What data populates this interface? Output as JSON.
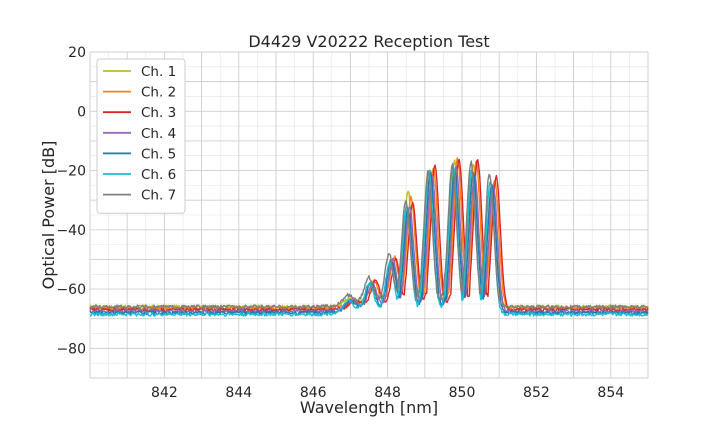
{
  "chart_data": {
    "type": "line",
    "title": "D4429 V20222 Reception Test",
    "xlabel": "Wavelength [nm]",
    "ylabel": "Optical Power [dB]",
    "xlim": [
      840,
      855
    ],
    "ylim": [
      -90,
      20
    ],
    "xticks": [
      842,
      844,
      846,
      848,
      850,
      852,
      854
    ],
    "yticks": [
      20,
      0,
      -20,
      -40,
      -60,
      -80
    ],
    "xtick_labels": [
      "842",
      "844",
      "846",
      "848",
      "850",
      "852",
      "854"
    ],
    "ytick_labels": [
      "20",
      "0",
      "−20",
      "−40",
      "−60",
      "−80"
    ],
    "grid": true,
    "minor_grid": true,
    "legend_position": "top-left",
    "series": [
      {
        "name": "Ch. 1",
        "color": "#bcbd22",
        "baseline": -66,
        "offset": 0.0,
        "peak_scale": 1.0,
        "peaks": [
          [
            847.0,
            -63
          ],
          [
            847.55,
            -58
          ],
          [
            848.1,
            -51
          ],
          [
            848.55,
            -27
          ],
          [
            849.15,
            -20
          ],
          [
            849.8,
            -17
          ],
          [
            850.3,
            -18
          ],
          [
            850.8,
            -25
          ]
        ]
      },
      {
        "name": "Ch. 2",
        "color": "#ff7f0e",
        "baseline": -66.5,
        "offset": 0.08,
        "peak_scale": 1.0,
        "peaks": [
          [
            847.0,
            -64
          ],
          [
            847.55,
            -57
          ],
          [
            848.1,
            -49
          ],
          [
            848.55,
            -29
          ],
          [
            849.15,
            -19
          ],
          [
            849.8,
            -16
          ],
          [
            850.3,
            -17
          ],
          [
            850.8,
            -23
          ]
        ]
      },
      {
        "name": "Ch. 3",
        "color": "#d62728",
        "baseline": -67,
        "offset": 0.12,
        "peak_scale": 1.0,
        "peaks": [
          [
            847.0,
            -64
          ],
          [
            847.55,
            -57
          ],
          [
            848.1,
            -50
          ],
          [
            848.55,
            -31
          ],
          [
            849.15,
            -18
          ],
          [
            849.8,
            -16
          ],
          [
            850.3,
            -16
          ],
          [
            850.8,
            -22
          ]
        ]
      },
      {
        "name": "Ch. 4",
        "color": "#9467bd",
        "baseline": -67.5,
        "offset": 0.04,
        "peak_scale": 1.0,
        "peaks": [
          [
            847.0,
            -64
          ],
          [
            847.55,
            -58
          ],
          [
            848.1,
            -50
          ],
          [
            848.55,
            -32
          ],
          [
            849.15,
            -21
          ],
          [
            849.8,
            -19
          ],
          [
            850.3,
            -21
          ],
          [
            850.8,
            -25
          ]
        ]
      },
      {
        "name": "Ch. 5",
        "color": "#1f77b4",
        "baseline": -68,
        "offset": 0.0,
        "peak_scale": 1.0,
        "peaks": [
          [
            847.0,
            -64
          ],
          [
            847.55,
            -58
          ],
          [
            848.1,
            -50
          ],
          [
            848.55,
            -33
          ],
          [
            849.15,
            -21
          ],
          [
            849.8,
            -20
          ],
          [
            850.3,
            -21
          ],
          [
            850.8,
            -25
          ]
        ]
      },
      {
        "name": "Ch. 6",
        "color": "#17becf",
        "baseline": -68.5,
        "offset": -0.04,
        "peak_scale": 1.0,
        "peaks": [
          [
            847.0,
            -64
          ],
          [
            847.55,
            -58
          ],
          [
            848.1,
            -51
          ],
          [
            848.55,
            -32
          ],
          [
            849.15,
            -20
          ],
          [
            849.8,
            -18
          ],
          [
            850.3,
            -20
          ],
          [
            850.8,
            -24
          ]
        ]
      },
      {
        "name": "Ch. 7",
        "color": "#7f7f7f",
        "baseline": -66,
        "offset": -0.06,
        "peak_scale": 1.0,
        "peaks": [
          [
            847.0,
            -62
          ],
          [
            847.55,
            -56
          ],
          [
            848.1,
            -48
          ],
          [
            848.55,
            -30
          ],
          [
            849.15,
            -20
          ],
          [
            849.8,
            -18
          ],
          [
            850.3,
            -17
          ],
          [
            850.8,
            -21
          ]
        ]
      }
    ]
  }
}
